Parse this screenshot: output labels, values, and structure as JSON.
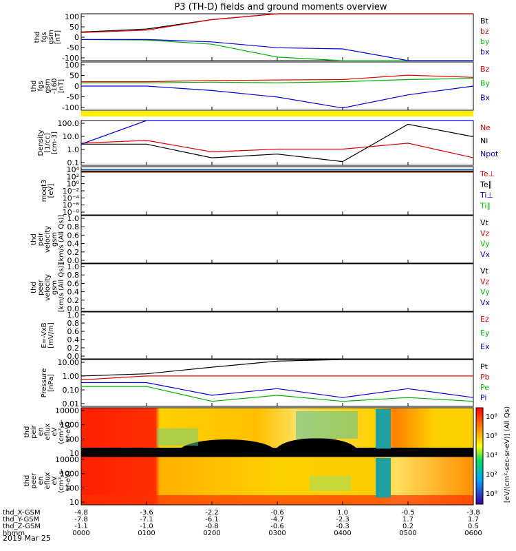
{
  "title": "P3 (TH-D) fields and ground moments overview",
  "panels": [
    {
      "id": "fgs",
      "ylabel": [
        "thd",
        "fgs",
        "gsm",
        "[nT]"
      ],
      "ticks": [
        "100",
        "50",
        "0",
        "-50",
        "-100"
      ],
      "legend": [
        {
          "t": "Bt",
          "c": "#000000"
        },
        {
          "t": "bz",
          "c": "#e00000"
        },
        {
          "t": "by",
          "c": "#00c000"
        },
        {
          "t": "bx",
          "c": "#0000e0"
        }
      ]
    },
    {
      "id": "fgs2",
      "ylabel": [
        "thd",
        "fgs",
        "gsm",
        "-160",
        "[nT]"
      ],
      "ticks": [
        "100",
        "50",
        "0",
        "-50",
        "-100"
      ],
      "legend": [
        {
          "t": "Bz",
          "c": "#e00000"
        },
        {
          "t": "By",
          "c": "#00c000"
        },
        {
          "t": "Bx",
          "c": "#0000e0"
        }
      ]
    },
    {
      "id": "dens",
      "ylabel": [
        "Density",
        "[1/cc]",
        "[cm-3]"
      ],
      "ticks": [
        "100.0",
        "10.0",
        "1.0",
        "0.1"
      ],
      "legend": [
        {
          "t": "Ne",
          "c": "#e00000"
        },
        {
          "t": "Ni",
          "c": "#000000"
        },
        {
          "t": "Npot",
          "c": "#0000e0"
        }
      ]
    },
    {
      "id": "temp",
      "ylabel": [
        "moqt3",
        "[eV]"
      ],
      "ticks": [
        "10⁴",
        "10²",
        "10⁰",
        "10⁻²",
        "10⁻⁴",
        "10⁻⁶",
        "10⁻⁸"
      ],
      "legend": [
        {
          "t": "Te⊥",
          "c": "#e00000"
        },
        {
          "t": "Te∥",
          "c": "#000000"
        },
        {
          "t": "Ti⊥",
          "c": "#0000e0"
        },
        {
          "t": "Ti∥",
          "c": "#00c000"
        }
      ]
    },
    {
      "id": "pvel",
      "ylabel": [
        "thd",
        "peir",
        "velocity",
        "gsm",
        "[km/s (All Qs)]"
      ],
      "ticks": [
        "1.0",
        "0.8",
        "0.6",
        "0.4",
        "0.2",
        "0.0"
      ],
      "legend": [
        {
          "t": "Vt",
          "c": "#000000"
        },
        {
          "t": "Vz",
          "c": "#e00000"
        },
        {
          "t": "Vy",
          "c": "#00c000"
        },
        {
          "t": "Vx",
          "c": "#0000e0"
        }
      ]
    },
    {
      "id": "evel",
      "ylabel": [
        "thd",
        "peer",
        "velocity",
        "gsm",
        "[km/s (All Qs)]"
      ],
      "ticks": [
        "1.0",
        "0.8",
        "0.6",
        "0.4",
        "0.2",
        "0.0"
      ],
      "legend": [
        {
          "t": "Vt",
          "c": "#000000"
        },
        {
          "t": "Vz",
          "c": "#e00000"
        },
        {
          "t": "Vy",
          "c": "#00c000"
        },
        {
          "t": "Vx",
          "c": "#0000e0"
        }
      ]
    },
    {
      "id": "efld",
      "ylabel": [
        "E=-VxB",
        "[mV/m]"
      ],
      "ticks": [
        "1.0",
        "0.8",
        "0.6",
        "0.4",
        "0.2",
        "0.0"
      ],
      "legend": [
        {
          "t": "Ez",
          "c": "#e00000"
        },
        {
          "t": "Ey",
          "c": "#00c000"
        },
        {
          "t": "Ex",
          "c": "#0000e0"
        }
      ]
    },
    {
      "id": "pres",
      "ylabel": [
        "Pressure",
        "[nPa]"
      ],
      "ticks": [
        "10.00",
        "1.00",
        "0.10",
        "0.01"
      ],
      "legend": [
        {
          "t": "Pt",
          "c": "#000000"
        },
        {
          "t": "Pb",
          "c": "#e00000"
        },
        {
          "t": "Pe",
          "c": "#00c000"
        },
        {
          "t": "Pi",
          "c": "#0000e0"
        }
      ]
    },
    {
      "id": "ispec",
      "ylabel": [
        "thd",
        "peir",
        "en",
        "eflux",
        "eV",
        "(cm²-s-",
        "sr-eV)"
      ],
      "ticks": [
        "10000",
        "1000",
        "100",
        "10"
      ],
      "legend": []
    },
    {
      "id": "espec",
      "ylabel": [
        "thd",
        "peer",
        "en",
        "eflux",
        "eV",
        "(cm²-s-",
        "sr-eV)"
      ],
      "ticks": [
        "10000",
        "1000",
        "100",
        "10"
      ],
      "legend": []
    }
  ],
  "colorbar": {
    "label": "[eV/(cm²-sec-sr-eV)] (All Qs)",
    "ticks": [
      "10⁸",
      "10⁶",
      "10⁴",
      "10²",
      "10⁰"
    ]
  },
  "xaxis": {
    "rows": [
      {
        "label": "thd_X-GSM",
        "values": [
          "-4.8",
          "-3.6",
          "-2.2",
          "-0.6",
          "1.0",
          "-0.5",
          "-3.8"
        ]
      },
      {
        "label": "thd_Y-GSM",
        "values": [
          "-7.8",
          "-7.1",
          "-6.1",
          "-4.7",
          "-2.3",
          "1.7",
          "1.7"
        ]
      },
      {
        "label": "thd_Z-GSM",
        "values": [
          "-1.1",
          "-1.0",
          "-0.8",
          "-0.6",
          "-0.3",
          "0.2",
          "0.5"
        ]
      },
      {
        "label": "hhmm",
        "values": [
          "0000",
          "0100",
          "0200",
          "0300",
          "0400",
          "0500",
          "0600"
        ]
      }
    ],
    "date": "2019 Mar 25"
  },
  "chart_data": {
    "type": "line",
    "title": "P3 (TH-D) fields and ground moments overview",
    "x_label": "hhmm",
    "x": [
      "0000",
      "0100",
      "0200",
      "0300",
      "0400",
      "0500",
      "0600"
    ],
    "panels": [
      {
        "name": "thd fgs gsm [nT]",
        "ylim": [
          -100,
          100
        ],
        "series": [
          {
            "name": "Bt",
            "values": [
              22,
              35,
              75,
              100,
              100,
              100,
              100
            ]
          },
          {
            "name": "bz",
            "values": [
              20,
              30,
              75,
              100,
              100,
              100,
              100
            ]
          },
          {
            "name": "by",
            "values": [
              -10,
              -12,
              -30,
              -85,
              -100,
              -100,
              -100
            ]
          },
          {
            "name": "bx",
            "values": [
              -10,
              -10,
              -20,
              -45,
              -50,
              -100,
              -100
            ]
          }
        ]
      },
      {
        "name": "thd fgs gsm -160 [nT]",
        "ylim": [
          -120,
          100
        ],
        "series": [
          {
            "name": "Bz",
            "values": [
              10,
              10,
              15,
              18,
              20,
              40,
              30
            ]
          },
          {
            "name": "By",
            "values": [
              5,
              5,
              8,
              5,
              10,
              20,
              25
            ]
          },
          {
            "name": "Bx",
            "values": [
              -10,
              -10,
              -30,
              -60,
              -110,
              -50,
              -10
            ]
          }
        ]
      },
      {
        "name": "Density [1/cc]",
        "scale": "log",
        "ylim": [
          0.05,
          200
        ],
        "series": [
          {
            "name": "Ne",
            "values": [
              3,
              5,
              0.6,
              1.0,
              1.0,
              3.0,
              0.2
            ]
          },
          {
            "name": "Ni",
            "values": [
              2.5,
              2.5,
              0.2,
              0.4,
              0.1,
              100,
              10
            ]
          },
          {
            "name": "Npot",
            "values": [
              2.5,
              200,
              200,
              200,
              200,
              200,
              200
            ]
          }
        ]
      },
      {
        "name": "Pressure [nPa]",
        "scale": "log",
        "ylim": [
          0.004,
          20
        ],
        "series": [
          {
            "name": "Pt",
            "values": [
              1.0,
              1.5,
              5,
              15,
              20,
              20,
              20
            ]
          },
          {
            "name": "Pb",
            "values": [
              0.5,
              1.0,
              1.0,
              1.0,
              1.0,
              1.0,
              1.0
            ]
          },
          {
            "name": "Pe",
            "values": [
              0.15,
              0.15,
              0.01,
              0.03,
              0.01,
              0.02,
              0.01
            ]
          },
          {
            "name": "Pi",
            "values": [
              0.3,
              0.3,
              0.03,
              0.1,
              0.02,
              0.1,
              0.02
            ]
          }
        ]
      }
    ]
  }
}
